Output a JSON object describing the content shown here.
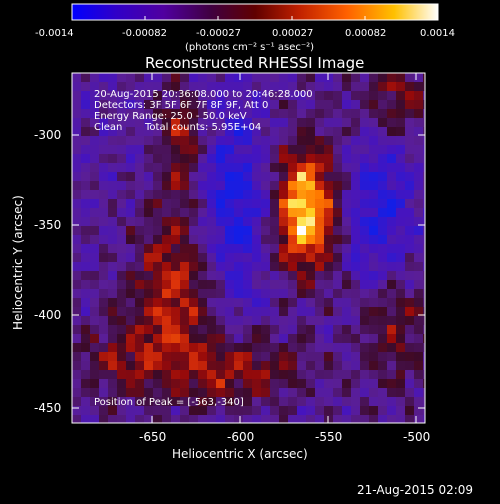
{
  "colorbar": {
    "ticks": [
      "-0.0014",
      "-0.00082",
      "-0.00027",
      "0.00027",
      "0.00082",
      "0.0014"
    ],
    "units": "(photons cm⁻² s⁻¹ asec⁻²)",
    "colormap": [
      "#0000ff",
      "#3000c0",
      "#5000a0",
      "#800000",
      "#c02000",
      "#ff6000",
      "#ffa000",
      "#ffff40",
      "#ffffff"
    ]
  },
  "title": "Reconstructed RHESSI Image",
  "info": {
    "line1": "20-Aug-2015 20:36:08.000 to 20:46:28.000",
    "line2": "Detectors: 3F 5F 6F 7F 8F 9F, Att 0",
    "line3": "Energy Range: 25.0 - 50.0 keV",
    "line4_label": "Clean",
    "line4_counts": "Total counts: 5.95E+04"
  },
  "peak": "Position of Peak = [-563,-340]",
  "xaxis": {
    "label": "Heliocentric X (arcsec)",
    "ticks": [
      "-650",
      "-600",
      "-550",
      "-500"
    ]
  },
  "yaxis": {
    "label": "Heliocentric Y (arcsec)",
    "ticks": [
      "-300",
      "-350",
      "-400",
      "-450"
    ]
  },
  "timestamp": "21-Aug-2015 02:09"
}
